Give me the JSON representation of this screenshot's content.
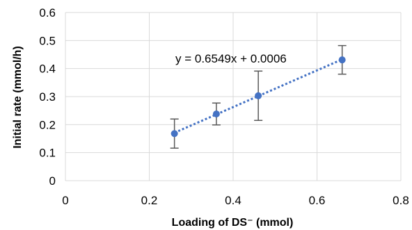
{
  "chart_data": {
    "type": "scatter",
    "title": "",
    "xlabel": "Loading of DS⁻ (mmol)",
    "ylabel": "Initial rate (mmol/h)",
    "xlim": [
      0,
      0.8
    ],
    "ylim": [
      0,
      0.6
    ],
    "xticks": [
      0,
      0.2,
      0.4,
      0.6,
      0.8
    ],
    "xtick_labels": [
      "0",
      "0.2",
      "0.4",
      "0.6",
      "0.8"
    ],
    "yticks": [
      0,
      0.1,
      0.2,
      0.3,
      0.4,
      0.5,
      0.6
    ],
    "ytick_labels": [
      "0",
      "0.1",
      "0.2",
      "0.3",
      "0.4",
      "0.5",
      "0.6"
    ],
    "grid": true,
    "legend": "none",
    "series": [
      {
        "color": "#4472C4",
        "x": [
          0.26,
          0.36,
          0.46,
          0.66
        ],
        "y": [
          0.168,
          0.238,
          0.303,
          0.431
        ],
        "error": [
          0.052,
          0.039,
          0.088,
          0.051
        ]
      }
    ],
    "trendline": {
      "type": "linear",
      "slope": 0.6549,
      "intercept": 0.0006,
      "x_range": [
        0.26,
        0.66
      ],
      "style": "dotted",
      "color": "#4472C4",
      "equation_label": "y = 0.6549x + 0.0006"
    },
    "error_bar_color": "#595959"
  }
}
